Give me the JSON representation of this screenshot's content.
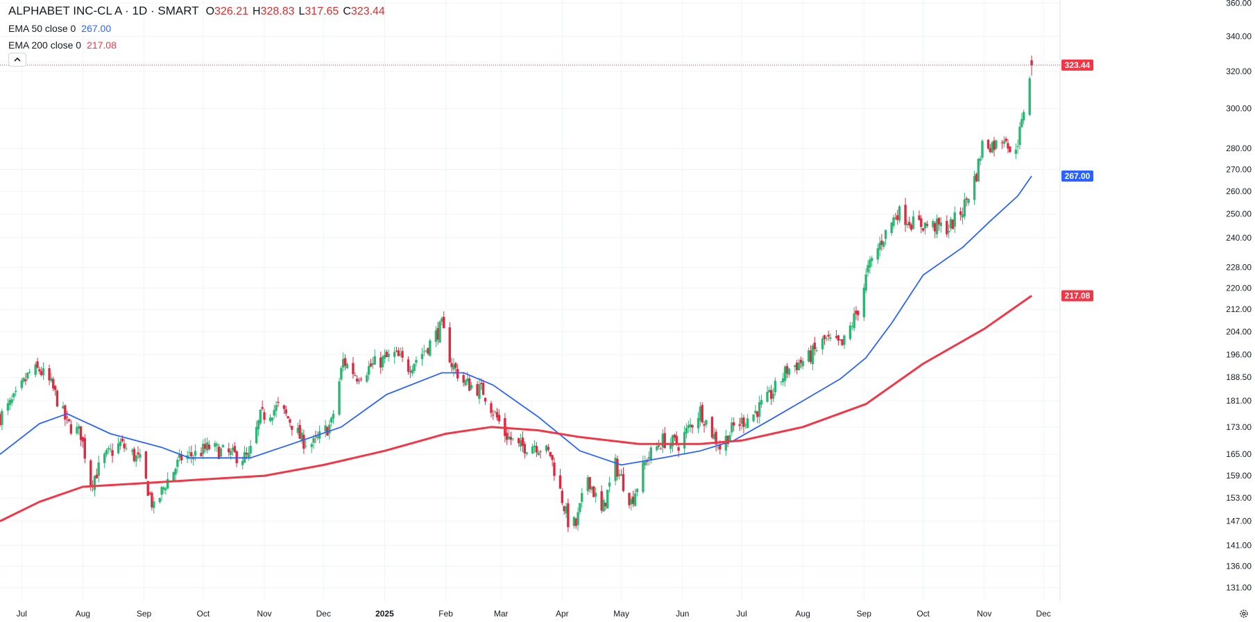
{
  "header": {
    "symbol": "ALPHABET INC-CL A · 1D · SMART",
    "open_key": "O",
    "open": "326.21",
    "high_key": "H",
    "high": "328.83",
    "low_key": "L",
    "low": "317.65",
    "close_key": "C",
    "close": "323.44",
    "ohlc_color": "#d32f2f"
  },
  "indicators": [
    {
      "name": "EMA 50 close 0",
      "value": "267.00",
      "color": "#2962ff"
    },
    {
      "name": "EMA 200 close 0",
      "value": "217.08",
      "color": "#f23645"
    }
  ],
  "collapse_icon": "chevron-up-icon",
  "settings_icon": "gear-icon",
  "colors": {
    "up": "#26a69a",
    "up_fill": "#2bb673",
    "down": "#e0283e",
    "ema50": "#2962ff",
    "ema200": "#f23645",
    "price_line": "#e0283e",
    "grid": "#f0f3fa",
    "axis_text": "#131722"
  },
  "chart_data": {
    "type": "candlestick",
    "scale": "log",
    "ylim": [
      128,
      362
    ],
    "y_ticks": [
      "360.00",
      "340.00",
      "320.00",
      "300.00",
      "280.00",
      "270.00",
      "260.00",
      "250.00",
      "240.00",
      "228.00",
      "220.00",
      "212.00",
      "204.00",
      "196.00",
      "188.50",
      "181.00",
      "173.00",
      "165.00",
      "159.00",
      "153.00",
      "147.00",
      "141.00",
      "136.00",
      "131.00"
    ],
    "x_ticks": [
      "Jul",
      "Aug",
      "Sep",
      "Oct",
      "Nov",
      "Dec",
      "2025",
      "Feb",
      "Mar",
      "Apr",
      "May",
      "Jun",
      "Jul",
      "Aug",
      "Sep",
      "Oct",
      "Nov",
      "Dec"
    ],
    "x_range": [
      "2024-06-20",
      "2025-12-08"
    ],
    "price_badges": [
      {
        "label": "323.44",
        "value": 323.44,
        "color": "#f23645"
      },
      {
        "label": "267.00",
        "value": 267.0,
        "color": "#2962ff"
      },
      {
        "label": "217.08",
        "value": 217.08,
        "color": "#f23645"
      }
    ],
    "close_path": [
      [
        "2024-06-20",
        176
      ],
      [
        "2024-06-28",
        182
      ],
      [
        "2024-07-05",
        190
      ],
      [
        "2024-07-10",
        191
      ],
      [
        "2024-07-16",
        186
      ],
      [
        "2024-07-24",
        174
      ],
      [
        "2024-07-31",
        171
      ],
      [
        "2024-08-05",
        157
      ],
      [
        "2024-08-12",
        164
      ],
      [
        "2024-08-20",
        168
      ],
      [
        "2024-08-30",
        163
      ],
      [
        "2024-09-06",
        150
      ],
      [
        "2024-09-12",
        157
      ],
      [
        "2024-09-20",
        164
      ],
      [
        "2024-09-27",
        165
      ],
      [
        "2024-10-04",
        167
      ],
      [
        "2024-10-14",
        165
      ],
      [
        "2024-10-24",
        164
      ],
      [
        "2024-10-30",
        176
      ],
      [
        "2024-11-08",
        179
      ],
      [
        "2024-11-14",
        175
      ],
      [
        "2024-11-20",
        169
      ],
      [
        "2024-11-26",
        168
      ],
      [
        "2024-12-05",
        174
      ],
      [
        "2024-12-11",
        194
      ],
      [
        "2024-12-18",
        189
      ],
      [
        "2024-12-27",
        193
      ],
      [
        "2025-01-06",
        196
      ],
      [
        "2025-01-13",
        192
      ],
      [
        "2025-01-22",
        198
      ],
      [
        "2025-01-30",
        206
      ],
      [
        "2025-02-04",
        193
      ],
      [
        "2025-02-10",
        187
      ],
      [
        "2025-02-20",
        184
      ],
      [
        "2025-03-03",
        171
      ],
      [
        "2025-03-10",
        167
      ],
      [
        "2025-03-18",
        168
      ],
      [
        "2025-03-26",
        165
      ],
      [
        "2025-04-04",
        147
      ],
      [
        "2025-04-08",
        146
      ],
      [
        "2025-04-14",
        159
      ],
      [
        "2025-04-21",
        149
      ],
      [
        "2025-04-28",
        162
      ],
      [
        "2025-05-06",
        152
      ],
      [
        "2025-05-14",
        164
      ],
      [
        "2025-05-22",
        169
      ],
      [
        "2025-05-30",
        168
      ],
      [
        "2025-06-10",
        178
      ],
      [
        "2025-06-20",
        167
      ],
      [
        "2025-06-27",
        173
      ],
      [
        "2025-07-07",
        177
      ],
      [
        "2025-07-15",
        182
      ],
      [
        "2025-07-24",
        191
      ],
      [
        "2025-08-04",
        195
      ],
      [
        "2025-08-12",
        201
      ],
      [
        "2025-08-21",
        199
      ],
      [
        "2025-08-29",
        212
      ],
      [
        "2025-09-03",
        227
      ],
      [
        "2025-09-10",
        239
      ],
      [
        "2025-09-18",
        251
      ],
      [
        "2025-09-26",
        246
      ],
      [
        "2025-10-06",
        245
      ],
      [
        "2025-10-14",
        244
      ],
      [
        "2025-10-21",
        252
      ],
      [
        "2025-10-28",
        268
      ],
      [
        "2025-10-31",
        282
      ],
      [
        "2025-11-07",
        282
      ],
      [
        "2025-11-12",
        287
      ],
      [
        "2025-11-14",
        276
      ],
      [
        "2025-11-18",
        284
      ],
      [
        "2025-11-20",
        292
      ],
      [
        "2025-11-21",
        300
      ],
      [
        "2025-11-24",
        318
      ],
      [
        "2025-11-25",
        323.44
      ]
    ],
    "series": [
      {
        "name": "EMA 50 close 0",
        "color": "#2962ff",
        "points": [
          [
            "2024-06-20",
            165
          ],
          [
            "2024-07-10",
            174
          ],
          [
            "2024-07-24",
            177
          ],
          [
            "2024-08-15",
            171
          ],
          [
            "2024-09-10",
            167
          ],
          [
            "2024-09-24",
            164
          ],
          [
            "2024-10-25",
            164
          ],
          [
            "2024-11-15",
            168
          ],
          [
            "2024-12-10",
            173
          ],
          [
            "2025-01-02",
            183
          ],
          [
            "2025-01-30",
            190
          ],
          [
            "2025-02-10",
            190
          ],
          [
            "2025-02-25",
            186
          ],
          [
            "2025-03-20",
            176
          ],
          [
            "2025-04-10",
            166
          ],
          [
            "2025-05-01",
            162
          ],
          [
            "2025-05-22",
            164
          ],
          [
            "2025-06-10",
            166
          ],
          [
            "2025-06-27",
            169
          ],
          [
            "2025-07-15",
            175
          ],
          [
            "2025-08-01",
            181
          ],
          [
            "2025-08-20",
            188
          ],
          [
            "2025-09-02",
            195
          ],
          [
            "2025-09-15",
            207
          ],
          [
            "2025-10-01",
            225
          ],
          [
            "2025-10-21",
            236
          ],
          [
            "2025-11-04",
            247
          ],
          [
            "2025-11-18",
            258
          ],
          [
            "2025-11-25",
            267
          ]
        ]
      },
      {
        "name": "EMA 200 close 0",
        "color": "#f23645",
        "points": [
          [
            "2024-06-20",
            147
          ],
          [
            "2024-07-10",
            152
          ],
          [
            "2024-08-01",
            156
          ],
          [
            "2024-09-01",
            157
          ],
          [
            "2024-10-01",
            158
          ],
          [
            "2024-11-01",
            159
          ],
          [
            "2024-12-01",
            162
          ],
          [
            "2025-01-01",
            166
          ],
          [
            "2025-02-01",
            171
          ],
          [
            "2025-02-24",
            173
          ],
          [
            "2025-03-20",
            172
          ],
          [
            "2025-04-10",
            170
          ],
          [
            "2025-05-10",
            168
          ],
          [
            "2025-06-10",
            168
          ],
          [
            "2025-07-01",
            169
          ],
          [
            "2025-08-01",
            173
          ],
          [
            "2025-09-02",
            180
          ],
          [
            "2025-10-01",
            193
          ],
          [
            "2025-11-01",
            205
          ],
          [
            "2025-11-25",
            217.08
          ]
        ]
      }
    ]
  }
}
